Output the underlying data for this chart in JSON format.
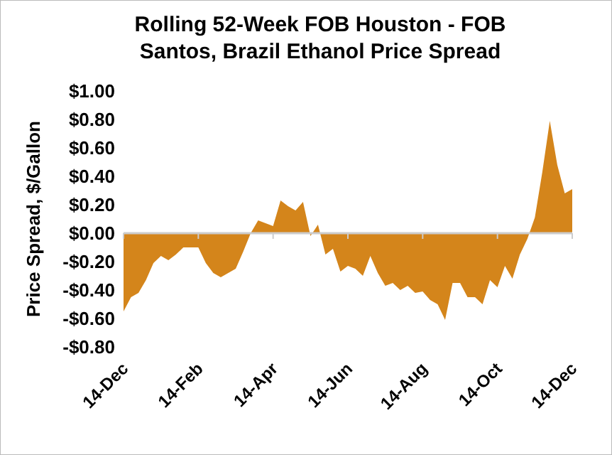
{
  "chart_data": {
    "type": "area",
    "title": "Rolling 52-Week FOB Houston - FOB Santos, Brazil Ethanol Price Spread",
    "ylabel": "Price Spread, $/Gallon",
    "categories": [
      "14-Dec",
      null,
      null,
      null,
      null,
      null,
      null,
      null,
      null,
      null,
      "14-Feb",
      null,
      null,
      null,
      null,
      null,
      null,
      null,
      null,
      null,
      "14-Apr",
      null,
      null,
      null,
      null,
      null,
      null,
      null,
      null,
      null,
      "14-Jun",
      null,
      null,
      null,
      null,
      null,
      null,
      null,
      null,
      null,
      "14-Aug",
      null,
      null,
      null,
      null,
      null,
      null,
      null,
      null,
      null,
      "14-Oct",
      null,
      null,
      null,
      null,
      null,
      null,
      null,
      null,
      null,
      "14-Dec"
    ],
    "series": [
      {
        "color": "#d4851b",
        "values": [
          -0.55,
          -0.45,
          -0.42,
          -0.33,
          -0.21,
          -0.16,
          -0.19,
          -0.15,
          -0.1,
          -0.1,
          -0.1,
          -0.21,
          -0.28,
          -0.31,
          -0.28,
          -0.25,
          -0.13,
          0,
          0.09,
          0.07,
          0.05,
          0.23,
          0.19,
          0.16,
          0.22,
          -0.02,
          0.06,
          -0.15,
          -0.11,
          -0.27,
          -0.23,
          -0.25,
          -0.3,
          -0.16,
          -0.28,
          -0.37,
          -0.35,
          -0.4,
          -0.37,
          -0.42,
          -0.41,
          -0.47,
          -0.5,
          -0.61,
          -0.35,
          -0.35,
          -0.45,
          -0.45,
          -0.5,
          -0.33,
          -0.38,
          -0.23,
          -0.32,
          -0.15,
          -0.04,
          0.11,
          0.43,
          0.79,
          0.48,
          0.28,
          0.31
        ]
      }
    ],
    "ylim": [
      -0.8,
      1
    ],
    "yticks": [
      {
        "value": -0.8,
        "label": "-$0.80"
      },
      {
        "value": -0.6,
        "label": "-$0.60"
      },
      {
        "value": -0.4,
        "label": "-$0.40"
      },
      {
        "value": -0.2,
        "label": "-$0.20"
      },
      {
        "value": 0,
        "label": "$0.00"
      },
      {
        "value": 0.2,
        "label": "$0.20"
      },
      {
        "value": 0.4,
        "label": "$0.40"
      },
      {
        "value": 0.6,
        "label": "$0.60"
      },
      {
        "value": 0.8,
        "label": "$0.80"
      },
      {
        "value": 1,
        "label": "$1.00"
      }
    ]
  }
}
